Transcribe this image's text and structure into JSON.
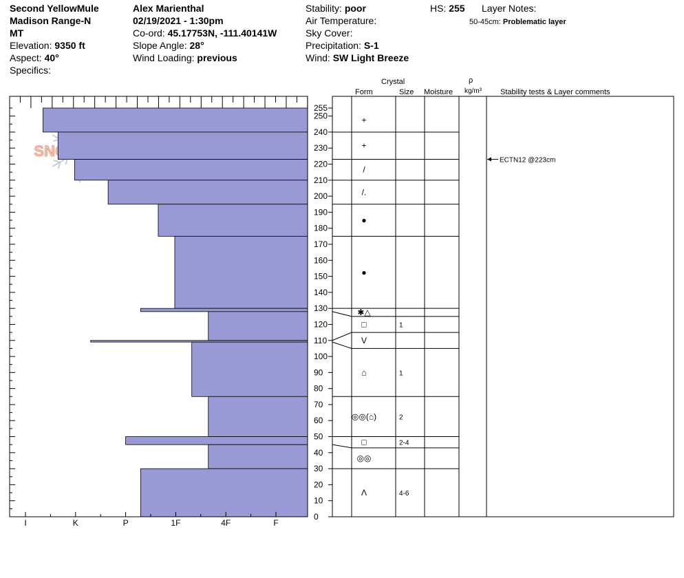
{
  "header": {
    "location_name": "Second YellowMule",
    "range": "Madison Range-N",
    "state": "MT",
    "elevation_label": "Elevation:",
    "elevation_value": "9350 ft",
    "aspect_label": "Aspect:",
    "aspect_value": "40°",
    "specifics_label": "Specifics:",
    "observer": "Alex Marienthal",
    "datetime": "02/19/2021 - 1:30pm",
    "coord_label": "Co-ord:",
    "coord_value": "45.17753N, -111.40141W",
    "slope_label": "Slope Angle:",
    "slope_value": "28°",
    "wind_loading_label": "Wind Loading:",
    "wind_loading_value": "previous",
    "stability_label": "Stability:",
    "stability_value": "poor",
    "air_temp_label": "Air Temperature:",
    "sky_cover_label": "Sky Cover:",
    "precip_label": "Precipitation:",
    "precip_value": "S-1",
    "wind_label": "Wind:",
    "wind_value": "SW  Light Breeze",
    "hs_label": "HS:",
    "hs_value": "255",
    "layer_notes_label": "Layer Notes:",
    "layer_notes_range": "50-45cm:",
    "layer_notes_text": "Problematic layer"
  },
  "columns": {
    "crystal": "Crystal",
    "form": "Form",
    "size": "Size",
    "moisture": "Moisture",
    "rho": "ρ",
    "density_unit": "kg/m³",
    "comments": "Stability tests & Layer comments"
  },
  "logo_text": "SNOWPILOT",
  "notes_label": "Notes:",
  "colors": {
    "hardness_fill": "#9999d6",
    "line": "#000000",
    "logo": "#f0a58a",
    "logo_flake": "#c8ccd2"
  },
  "chart_data": {
    "type": "bar",
    "orientation": "horizontal",
    "y_axis": {
      "label": "",
      "range": [
        0,
        255
      ],
      "ticks": [
        0,
        10,
        20,
        30,
        40,
        50,
        60,
        70,
        80,
        90,
        100,
        110,
        120,
        130,
        140,
        150,
        160,
        170,
        180,
        190,
        200,
        210,
        220,
        230,
        240,
        250,
        255
      ]
    },
    "hardness_scale": [
      "I",
      "K",
      "P",
      "1F",
      "4F",
      "F"
    ],
    "layers": [
      {
        "top": 255,
        "bottom": 240,
        "hardness": 0.35,
        "form": "+",
        "size": ""
      },
      {
        "top": 240,
        "bottom": 223,
        "hardness": 0.65,
        "form": "+",
        "size": ""
      },
      {
        "top": 223,
        "bottom": 210,
        "hardness": 0.98,
        "form": "/",
        "size": ""
      },
      {
        "top": 210,
        "bottom": 195,
        "hardness": 1.65,
        "form": "/.",
        "size": ""
      },
      {
        "top": 195,
        "bottom": 175,
        "hardness": 2.65,
        "form": "●",
        "size": ""
      },
      {
        "top": 175,
        "bottom": 130,
        "hardness": 2.98,
        "form": "●",
        "size": ""
      },
      {
        "top": 130,
        "bottom": 128,
        "hardness": 2.3,
        "form": "✱△",
        "size": ""
      },
      {
        "top": 128,
        "bottom": 110,
        "hardness": 3.65,
        "form": "□",
        "size": "1"
      },
      {
        "top": 110,
        "bottom": 109,
        "hardness": 1.3,
        "form": "V",
        "size": ""
      },
      {
        "top": 109,
        "bottom": 75,
        "hardness": 3.32,
        "form": "⌂",
        "size": "1"
      },
      {
        "top": 75,
        "bottom": 50,
        "hardness": 3.65,
        "form": "◎◎(⌂)",
        "size": "2"
      },
      {
        "top": 50,
        "bottom": 45,
        "hardness": 2.0,
        "form": "□",
        "size": "2-4"
      },
      {
        "top": 45,
        "bottom": 30,
        "hardness": 3.65,
        "form": "◎◎",
        "size": ""
      },
      {
        "top": 30,
        "bottom": 0,
        "hardness": 2.3,
        "form": "Λ",
        "size": "4-6"
      }
    ],
    "form_rows": [
      {
        "top": 255,
        "bottom": 240,
        "form": "+",
        "size": ""
      },
      {
        "top": 240,
        "bottom": 223,
        "form": "+",
        "size": ""
      },
      {
        "top": 223,
        "bottom": 210,
        "form": "/",
        "size": ""
      },
      {
        "top": 210,
        "bottom": 195,
        "form": "/.",
        "size": ""
      },
      {
        "top": 195,
        "bottom": 175,
        "form": "●",
        "size": ""
      },
      {
        "top": 175,
        "bottom": 130,
        "form": "●",
        "size": ""
      },
      {
        "top": 130,
        "bottom": 125,
        "form": "✱△",
        "size": ""
      },
      {
        "top": 125,
        "bottom": 115,
        "form": "□",
        "size": "1"
      },
      {
        "top": 115,
        "bottom": 105,
        "form": "V",
        "size": ""
      },
      {
        "top": 105,
        "bottom": 75,
        "form": "⌂",
        "size": "1"
      },
      {
        "top": 75,
        "bottom": 50,
        "form": "◎◎(⌂)",
        "size": "2"
      },
      {
        "top": 50,
        "bottom": 43,
        "form": "□",
        "size": "2-4"
      },
      {
        "top": 43,
        "bottom": 30,
        "form": "◎◎",
        "size": ""
      },
      {
        "top": 30,
        "bottom": 0,
        "form": "Λ",
        "size": "4-6"
      }
    ],
    "stability_tests": [
      {
        "depth": 223,
        "text": "ECTN12 @223cm"
      }
    ]
  }
}
